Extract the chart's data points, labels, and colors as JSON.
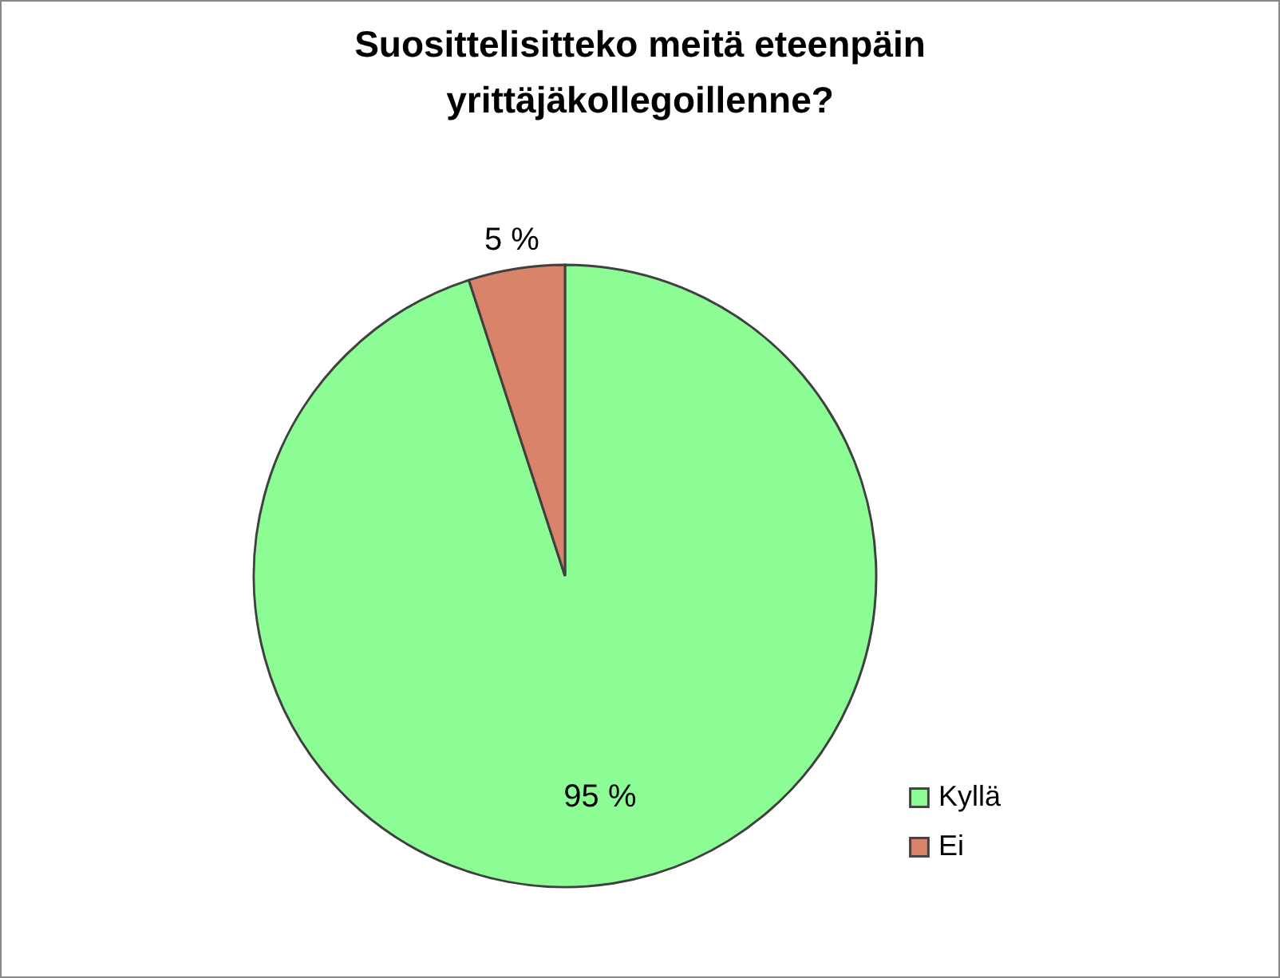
{
  "chart_data": {
    "type": "pie",
    "title": "Suosittelisitteko meitä eteenpäin yrittäjäkollegoillenne?",
    "categories": [
      "Kyllä",
      "Ei"
    ],
    "values": [
      95,
      5
    ],
    "colors": [
      "#8cfc94",
      "#d9836a"
    ],
    "value_labels": [
      "95 %",
      "5 %"
    ],
    "legend": "right"
  }
}
